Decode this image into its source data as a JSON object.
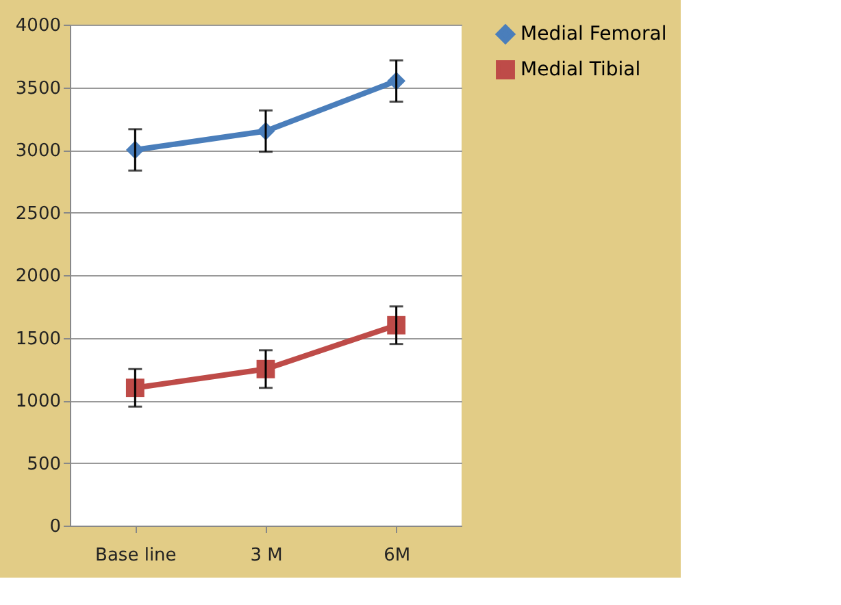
{
  "chart_data": {
    "type": "line",
    "categories": [
      "Base line",
      "3 M",
      "6M"
    ],
    "series": [
      {
        "name": "Medial Femoral",
        "color": "#4a7ebb",
        "marker": "diamond",
        "values": [
          3000,
          3150,
          3550
        ],
        "errors": [
          165,
          165,
          165
        ]
      },
      {
        "name": "Medial Tibial",
        "color": "#be4b48",
        "marker": "square",
        "values": [
          1100,
          1250,
          1600
        ],
        "errors": [
          150,
          150,
          150
        ]
      }
    ],
    "ylim": [
      0,
      4000
    ],
    "yticks": [
      0,
      500,
      1000,
      1500,
      2000,
      2500,
      3000,
      3500,
      4000
    ],
    "grid": "y",
    "legend": "right",
    "line_style": "solid"
  }
}
